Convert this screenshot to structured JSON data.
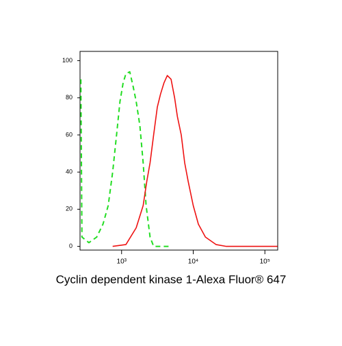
{
  "chart_data": {
    "type": "line",
    "xlabel": "Cyclin dependent kinase 1-Alexa Fluor® 647",
    "xscale": "log",
    "xlim": [
      263,
      151000
    ],
    "xticks": [
      {
        "value": 1000,
        "label": "10³"
      },
      {
        "value": 10000,
        "label": "10⁴"
      },
      {
        "value": 100000,
        "label": "10⁵"
      }
    ],
    "ylim": [
      -2,
      105
    ],
    "yticks": [
      0,
      20,
      40,
      60,
      80,
      100
    ],
    "series": [
      {
        "color": "#22dd22",
        "linestyle": "dashed",
        "x": [
          270,
          280,
          350,
          450,
          550,
          650,
          750,
          850,
          950,
          1050,
          1150,
          1300,
          1450,
          1600,
          1800,
          2000,
          2200,
          2500,
          2800,
          5000
        ],
        "values": [
          90,
          5,
          2,
          5,
          12,
          22,
          40,
          60,
          78,
          88,
          93,
          94,
          86,
          78,
          65,
          45,
          22,
          5,
          0,
          0
        ]
      },
      {
        "color": "#ee1111",
        "linestyle": "solid",
        "x": [
          750,
          1150,
          1600,
          2000,
          2250,
          2500,
          2800,
          3150,
          3500,
          3900,
          4350,
          4900,
          5500,
          6000,
          6800,
          7600,
          8500,
          10000,
          11800,
          14800,
          20800,
          29000,
          150000
        ],
        "values": [
          0,
          1,
          10,
          22,
          35,
          45,
          60,
          75,
          82,
          88,
          92,
          90,
          80,
          70,
          60,
          45,
          35,
          22,
          12,
          5,
          1,
          0,
          0
        ]
      }
    ]
  }
}
